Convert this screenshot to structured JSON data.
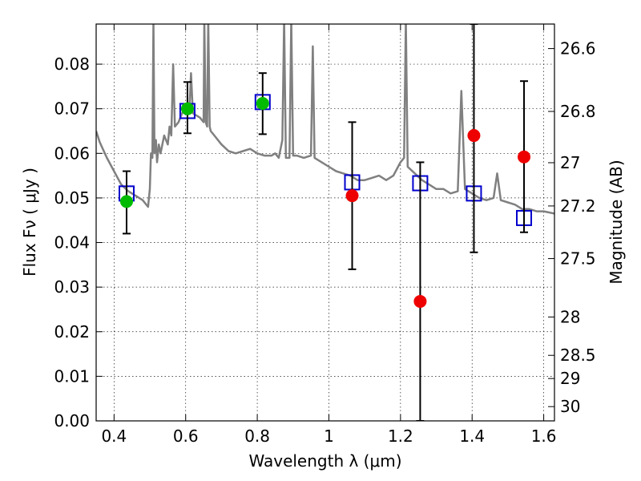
{
  "chart_data": {
    "type": "scatter",
    "xlabel": "Wavelength  λ (μm)",
    "ylabel": "Flux  Fν  ( μJy )",
    "y2label": "Magnitude (AB)",
    "xlim": [
      0.35,
      1.63
    ],
    "ylim": [
      0.0,
      0.089
    ],
    "grid": true,
    "x_ticks": [
      0.4,
      0.6,
      0.8,
      1.0,
      1.2,
      1.4,
      1.6
    ],
    "x_tick_labels": [
      "0.4",
      "0.6",
      "0.8",
      "1",
      "1.2",
      "1.4",
      "1.6"
    ],
    "y_ticks": [
      0.0,
      0.01,
      0.02,
      0.03,
      0.04,
      0.05,
      0.06,
      0.07,
      0.08
    ],
    "y_tick_labels": [
      "0.00",
      "0.01",
      "0.02",
      "0.03",
      "0.04",
      "0.05",
      "0.06",
      "0.07",
      "0.08"
    ],
    "y2_ticks": [
      {
        "label": "26.6",
        "flux": 0.0835
      },
      {
        "label": "26.8",
        "flux": 0.0694
      },
      {
        "label": "27",
        "flux": 0.0579
      },
      {
        "label": "27.2",
        "flux": 0.0482
      },
      {
        "label": "27.5",
        "flux": 0.0364
      },
      {
        "label": "28",
        "flux": 0.0233
      },
      {
        "label": "28.5",
        "flux": 0.0147
      },
      {
        "label": "29",
        "flux": 0.0095
      },
      {
        "label": "30",
        "flux": 0.0032
      }
    ],
    "series": [
      {
        "color": "#808080",
        "style": "line",
        "points": [
          [
            0.35,
            0.065
          ],
          [
            0.36,
            0.0625
          ],
          [
            0.38,
            0.059
          ],
          [
            0.4,
            0.056
          ],
          [
            0.42,
            0.053
          ],
          [
            0.44,
            0.0515
          ],
          [
            0.46,
            0.0505
          ],
          [
            0.48,
            0.0495
          ],
          [
            0.495,
            0.048
          ],
          [
            0.5,
            0.052
          ],
          [
            0.503,
            0.06
          ],
          [
            0.507,
            0.059
          ],
          [
            0.51,
            0.09
          ],
          [
            0.513,
            0.06
          ],
          [
            0.517,
            0.063
          ],
          [
            0.52,
            0.058
          ],
          [
            0.525,
            0.062
          ],
          [
            0.53,
            0.06
          ],
          [
            0.54,
            0.064
          ],
          [
            0.55,
            0.062
          ],
          [
            0.555,
            0.066
          ],
          [
            0.56,
            0.064
          ],
          [
            0.565,
            0.08
          ],
          [
            0.57,
            0.066
          ],
          [
            0.58,
            0.067
          ],
          [
            0.59,
            0.069
          ],
          [
            0.6,
            0.07
          ],
          [
            0.61,
            0.069
          ],
          [
            0.615,
            0.078
          ],
          [
            0.62,
            0.069
          ],
          [
            0.63,
            0.0685
          ],
          [
            0.64,
            0.068
          ],
          [
            0.65,
            0.067
          ],
          [
            0.652,
            0.09
          ],
          [
            0.656,
            0.067
          ],
          [
            0.66,
            0.066
          ],
          [
            0.663,
            0.09
          ],
          [
            0.667,
            0.066
          ],
          [
            0.67,
            0.065
          ],
          [
            0.68,
            0.064
          ],
          [
            0.7,
            0.062
          ],
          [
            0.72,
            0.0605
          ],
          [
            0.74,
            0.06
          ],
          [
            0.76,
            0.0605
          ],
          [
            0.78,
            0.061
          ],
          [
            0.8,
            0.06
          ],
          [
            0.82,
            0.0595
          ],
          [
            0.84,
            0.0595
          ],
          [
            0.85,
            0.06
          ],
          [
            0.86,
            0.059
          ],
          [
            0.87,
            0.063
          ],
          [
            0.875,
            0.09
          ],
          [
            0.88,
            0.059
          ],
          [
            0.89,
            0.059
          ],
          [
            0.895,
            0.09
          ],
          [
            0.9,
            0.0595
          ],
          [
            0.91,
            0.0595
          ],
          [
            0.93,
            0.059
          ],
          [
            0.95,
            0.0595
          ],
          [
            0.955,
            0.084
          ],
          [
            0.96,
            0.059
          ],
          [
            0.98,
            0.058
          ],
          [
            1.0,
            0.057
          ],
          [
            1.02,
            0.056
          ],
          [
            1.04,
            0.0555
          ],
          [
            1.06,
            0.055
          ],
          [
            1.08,
            0.054
          ],
          [
            1.1,
            0.054
          ],
          [
            1.12,
            0.0545
          ],
          [
            1.14,
            0.055
          ],
          [
            1.16,
            0.054
          ],
          [
            1.18,
            0.055
          ],
          [
            1.2,
            0.058
          ],
          [
            1.21,
            0.059
          ],
          [
            1.215,
            0.09
          ],
          [
            1.22,
            0.057
          ],
          [
            1.24,
            0.0555
          ],
          [
            1.26,
            0.054
          ],
          [
            1.28,
            0.053
          ],
          [
            1.3,
            0.052
          ],
          [
            1.32,
            0.052
          ],
          [
            1.34,
            0.051
          ],
          [
            1.36,
            0.0515
          ],
          [
            1.37,
            0.074
          ],
          [
            1.38,
            0.052
          ],
          [
            1.4,
            0.051
          ],
          [
            1.42,
            0.05
          ],
          [
            1.44,
            0.0495
          ],
          [
            1.46,
            0.05
          ],
          [
            1.47,
            0.0555
          ],
          [
            1.48,
            0.0495
          ],
          [
            1.5,
            0.049
          ],
          [
            1.52,
            0.0485
          ],
          [
            1.54,
            0.0475
          ],
          [
            1.56,
            0.0475
          ],
          [
            1.58,
            0.047
          ],
          [
            1.6,
            0.047
          ],
          [
            1.63,
            0.0465
          ]
        ]
      },
      {
        "style": "box",
        "color": "#0000cc",
        "points": [
          [
            0.435,
            0.051
          ],
          [
            0.605,
            0.0695
          ],
          [
            0.815,
            0.0715
          ],
          [
            1.065,
            0.0535
          ],
          [
            1.255,
            0.0533
          ],
          [
            1.405,
            0.051
          ],
          [
            1.545,
            0.0455
          ]
        ]
      },
      {
        "style": "marker",
        "color": "#00bb00",
        "points": [
          {
            "x": 0.435,
            "y": 0.0492,
            "err_lo": 0.042,
            "err_hi": 0.056
          },
          {
            "x": 0.605,
            "y": 0.07,
            "err_lo": 0.0645,
            "err_hi": 0.076
          },
          {
            "x": 0.815,
            "y": 0.0712,
            "err_lo": 0.0643,
            "err_hi": 0.078
          }
        ]
      },
      {
        "style": "marker",
        "color": "#ee0000",
        "points": [
          {
            "x": 1.065,
            "y": 0.0505,
            "err_lo": 0.034,
            "err_hi": 0.067
          },
          {
            "x": 1.255,
            "y": 0.0268,
            "err_lo": 0.0,
            "err_hi": 0.058
          },
          {
            "x": 1.405,
            "y": 0.064,
            "err_lo": 0.0378,
            "err_hi": 0.089
          },
          {
            "x": 1.545,
            "y": 0.0592,
            "err_lo": 0.0423,
            "err_hi": 0.0762
          }
        ]
      }
    ]
  }
}
